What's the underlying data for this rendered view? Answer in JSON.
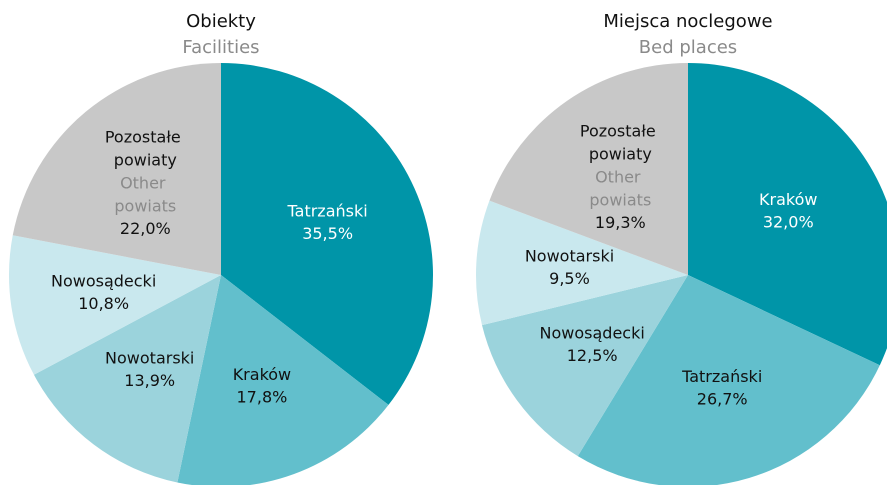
{
  "chart_data": [
    {
      "type": "pie",
      "title": "Obiekty",
      "subtitle": "Facilities",
      "categories": [
        "Tatrzański",
        "Kraków",
        "Nowotarski",
        "Nowosądecki",
        "Pozostałe powiaty"
      ],
      "other_note": "Other powiats",
      "values": [
        35.5,
        17.8,
        13.9,
        10.8,
        22.0
      ],
      "value_labels": [
        "35,5%",
        "17,8%",
        "13,9%",
        "10,8%",
        "22,0%"
      ],
      "colors": [
        "#0095a8",
        "#62bfcc",
        "#9bd3dc",
        "#c9e8ee",
        "#c8c8c8"
      ]
    },
    {
      "type": "pie",
      "title": "Miejsca noclegowe",
      "subtitle": "Bed places",
      "categories": [
        "Kraków",
        "Tatrzański",
        "Nowosądecki",
        "Nowotarski",
        "Pozostałe powiaty"
      ],
      "other_note": "Other powiats",
      "values": [
        32.0,
        26.7,
        12.5,
        9.5,
        19.3
      ],
      "value_labels": [
        "32,0%",
        "26,7%",
        "12,5%",
        "9,5%",
        "19,3%"
      ],
      "colors": [
        "#0095a8",
        "#62bfcc",
        "#9bd3dc",
        "#c9e8ee",
        "#c8c8c8"
      ]
    }
  ]
}
